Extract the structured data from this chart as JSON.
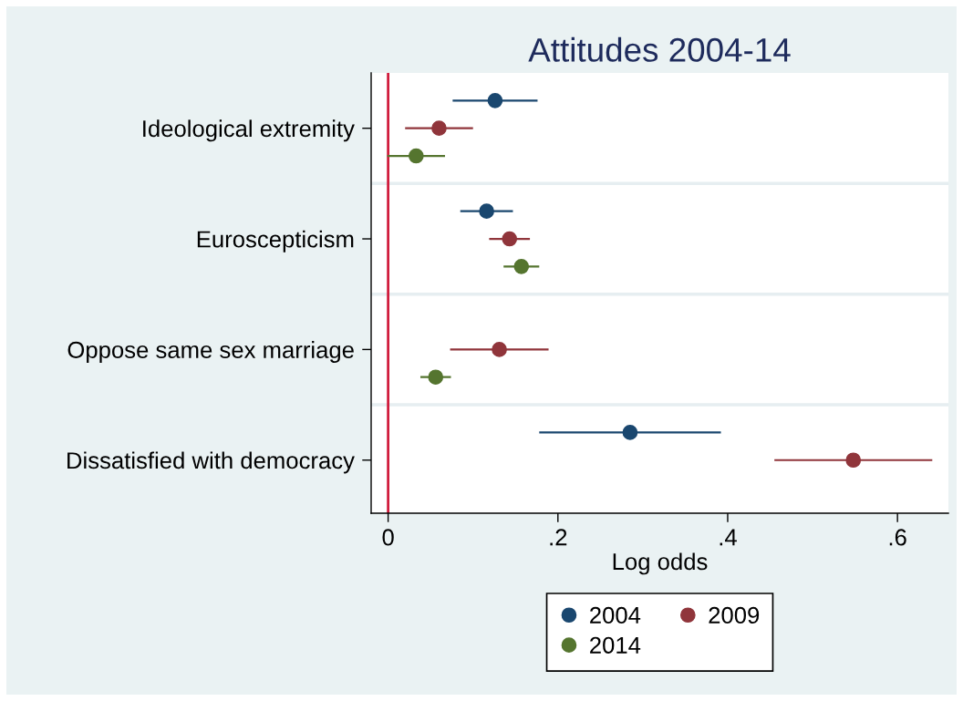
{
  "chart_data": {
    "type": "scatter",
    "title": "Attitudes 2004-14",
    "xlabel": "Log odds",
    "orientation": "horizontal",
    "categories": [
      "Ideological extremity",
      "Euroscepticism",
      "Oppose same sex marriage",
      "Dissatisfied with democracy"
    ],
    "series": [
      {
        "name": "2004",
        "color": "#1a476f",
        "values": [
          0.126,
          0.116,
          null,
          0.285
        ],
        "errors": [
          0.05,
          0.031,
          null,
          0.107
        ]
      },
      {
        "name": "2009",
        "color": "#90353b",
        "values": [
          0.06,
          0.143,
          0.131,
          0.548
        ],
        "errors": [
          0.04,
          0.024,
          0.058,
          0.093
        ]
      },
      {
        "name": "2014",
        "color": "#55752f",
        "values": [
          0.033,
          0.157,
          0.056,
          null
        ],
        "errors": [
          0.034,
          0.021,
          0.018,
          null
        ]
      }
    ],
    "xlim": [
      -0.02,
      0.66
    ],
    "xticks": [
      0,
      {
        "value": 0.2,
        "label": ".2"
      },
      {
        "value": 0.4,
        "label": ".4"
      },
      {
        "value": 0.6,
        "label": ".6"
      }
    ],
    "ref_lines": [
      {
        "axis": "x",
        "value": 0,
        "color": "#d01c3c"
      }
    ],
    "grid": "y",
    "legend": "bottom",
    "marker": "circle"
  }
}
